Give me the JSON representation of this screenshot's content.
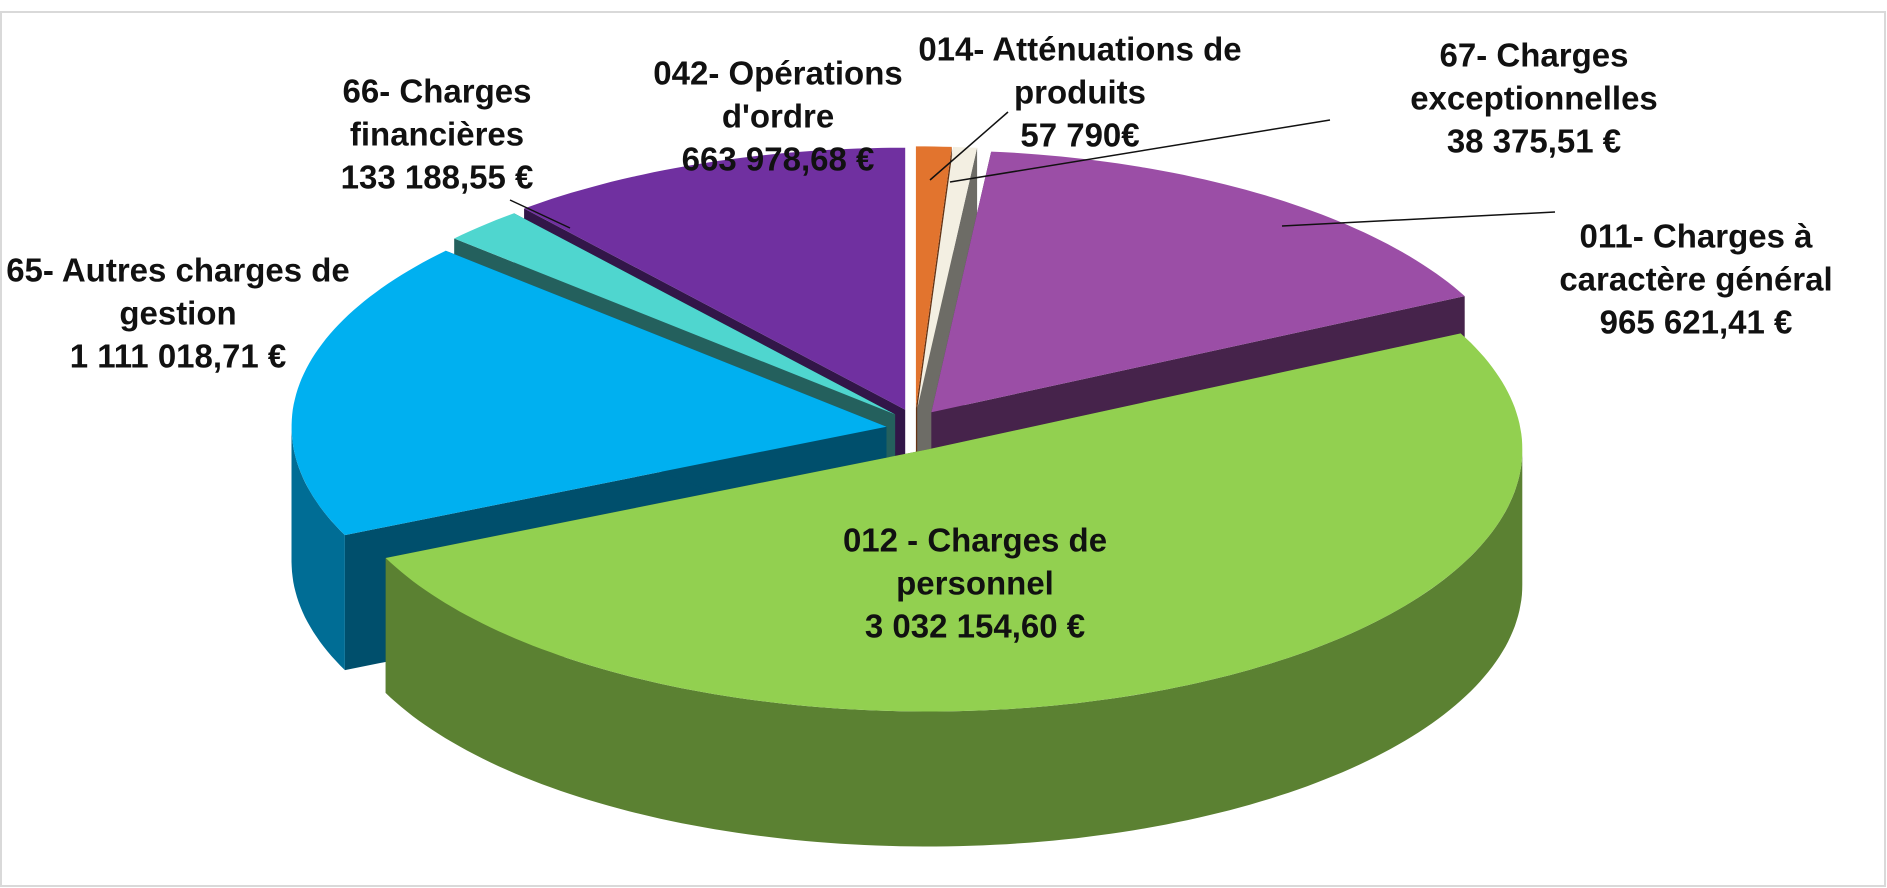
{
  "chart_data": {
    "type": "pie3d",
    "categories": [
      "014- Atténuations de produits",
      "67- Charges exceptionnelles",
      "011- Charges à caractère général",
      "012 - Charges de personnel",
      "65- Autres charges de gestion",
      "66- Charges financières",
      "042- Opérations d'ordre"
    ],
    "values": [
      57790,
      38375.51,
      965621.41,
      3032154.6,
      1111018.71,
      133188.55,
      663978.68
    ],
    "value_labels": [
      "57 790€",
      "38 375,51 €",
      "965 621,41 €",
      "3 032 154,60 €",
      "1 111 018,71 €",
      "133 188,55 €",
      "663 978,68 €"
    ],
    "colors": [
      "#e2742e",
      "#f3efe2",
      "#9b4ea6",
      "#92d050",
      "#00b0f0",
      "#4fd6cf",
      "#7030a0"
    ]
  }
}
